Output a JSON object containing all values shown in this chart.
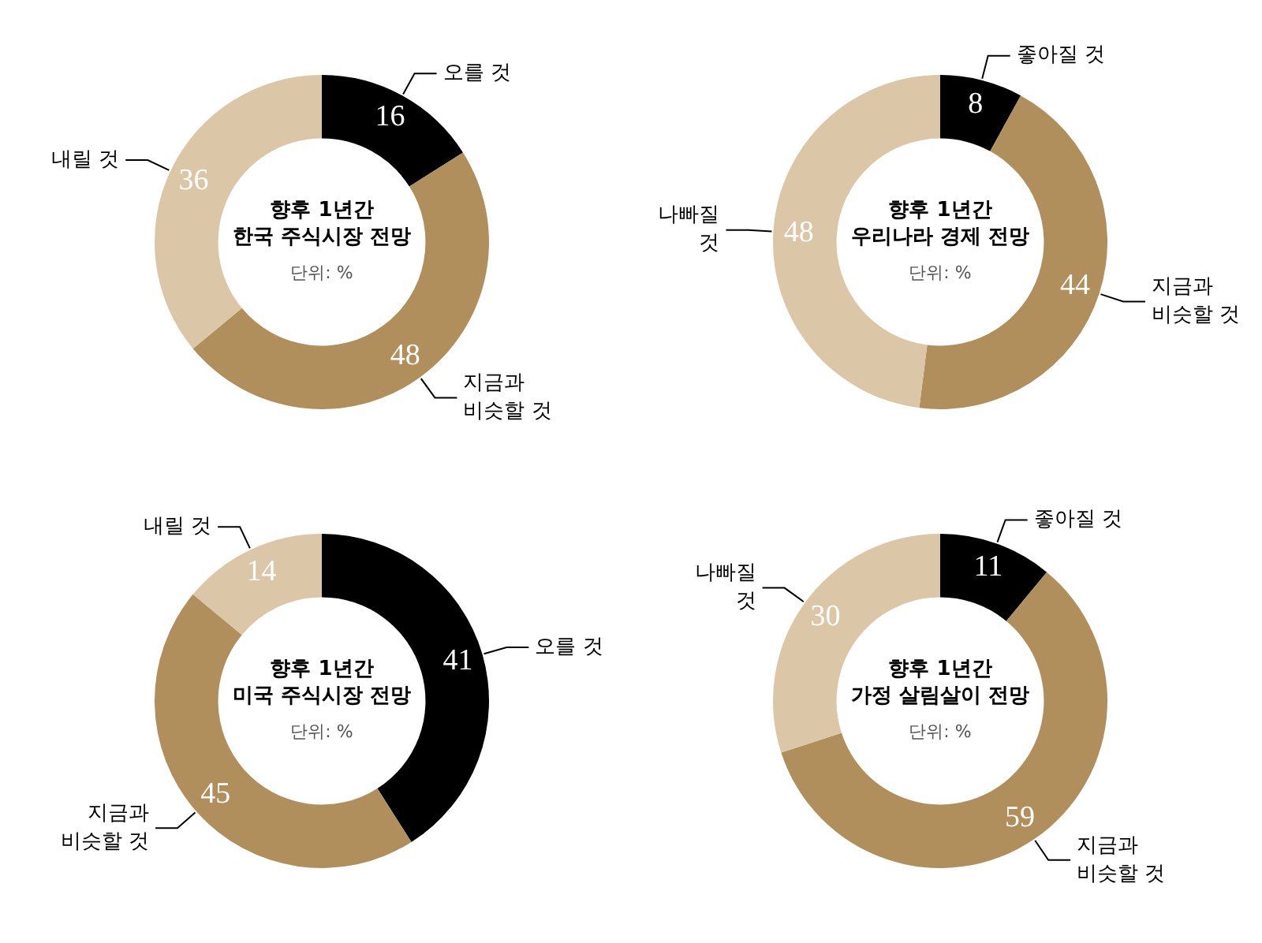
{
  "chart_data": [
    {
      "type": "donut",
      "title": "향후 1년간\n한국 주식시장 전망",
      "subtitle": "단위: %",
      "categories": [
        "오를 것",
        "지금과\n비슷할 것",
        "내릴 것"
      ],
      "values": [
        16,
        48,
        36
      ],
      "colors": [
        "#000000",
        "#b08f5c",
        "#dbc6a7"
      ],
      "data_labels": true
    },
    {
      "type": "donut",
      "title": "향후 1년간\n우리나라 경제 전망",
      "subtitle": "단위: %",
      "categories": [
        "좋아질 것",
        "지금과\n비슷할 것",
        "나빠질\n것"
      ],
      "values": [
        8,
        44,
        48
      ],
      "colors": [
        "#000000",
        "#b08f5c",
        "#dbc6a7"
      ],
      "data_labels": true
    },
    {
      "type": "donut",
      "title": "향후 1년간\n미국 주식시장 전망",
      "subtitle": "단위: %",
      "categories": [
        "오를 것",
        "지금과\n비슷할 것",
        "내릴 것"
      ],
      "values": [
        41,
        45,
        14
      ],
      "colors": [
        "#000000",
        "#b08f5c",
        "#dbc6a7"
      ],
      "data_labels": true
    },
    {
      "type": "donut",
      "title": "향후 1년간\n가정 살림살이 전망",
      "subtitle": "단위: %",
      "categories": [
        "좋아질 것",
        "지금과\n비슷할 것",
        "나빠질\n것"
      ],
      "values": [
        11,
        59,
        30
      ],
      "colors": [
        "#000000",
        "#b08f5c",
        "#dbc6a7"
      ],
      "data_labels": true
    }
  ]
}
